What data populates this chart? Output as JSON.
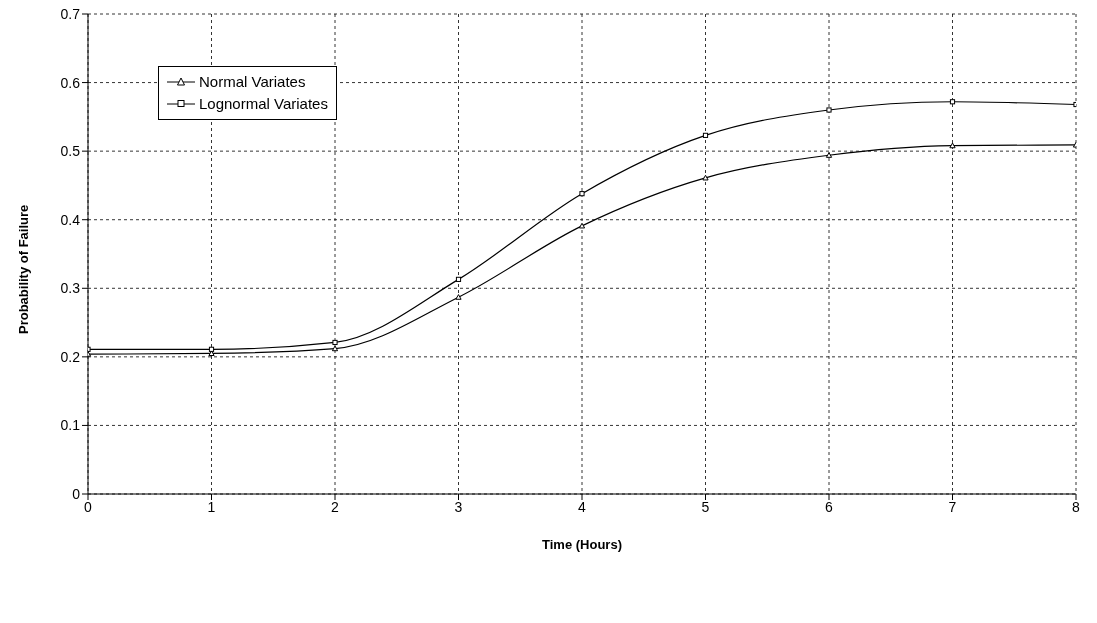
{
  "chart_data": {
    "type": "line",
    "xlabel": "Time (Hours)",
    "ylabel": "Probability of Failure",
    "x": [
      0,
      1,
      2,
      3,
      4,
      5,
      6,
      7,
      8
    ],
    "series": [
      {
        "name": "Normal Variates",
        "color": "#000000",
        "marker": "triangle",
        "values": [
          0.204,
          0.205,
          0.212,
          0.287,
          0.391,
          0.461,
          0.494,
          0.508,
          0.509
        ]
      },
      {
        "name": "Lognormal Variates",
        "color": "#000000",
        "marker": "square",
        "values": [
          0.211,
          0.211,
          0.221,
          0.313,
          0.438,
          0.523,
          0.56,
          0.572,
          0.568
        ]
      }
    ],
    "xlim": [
      0,
      8
    ],
    "xticks": [
      0,
      1,
      2,
      3,
      4,
      5,
      6,
      7,
      8
    ],
    "ylim": [
      0,
      0.7
    ],
    "yticks": [
      0,
      0.1,
      0.2,
      0.3,
      0.4,
      0.5,
      0.6,
      0.7
    ],
    "grid": true,
    "legend": "top left",
    "line_style": "solid"
  }
}
